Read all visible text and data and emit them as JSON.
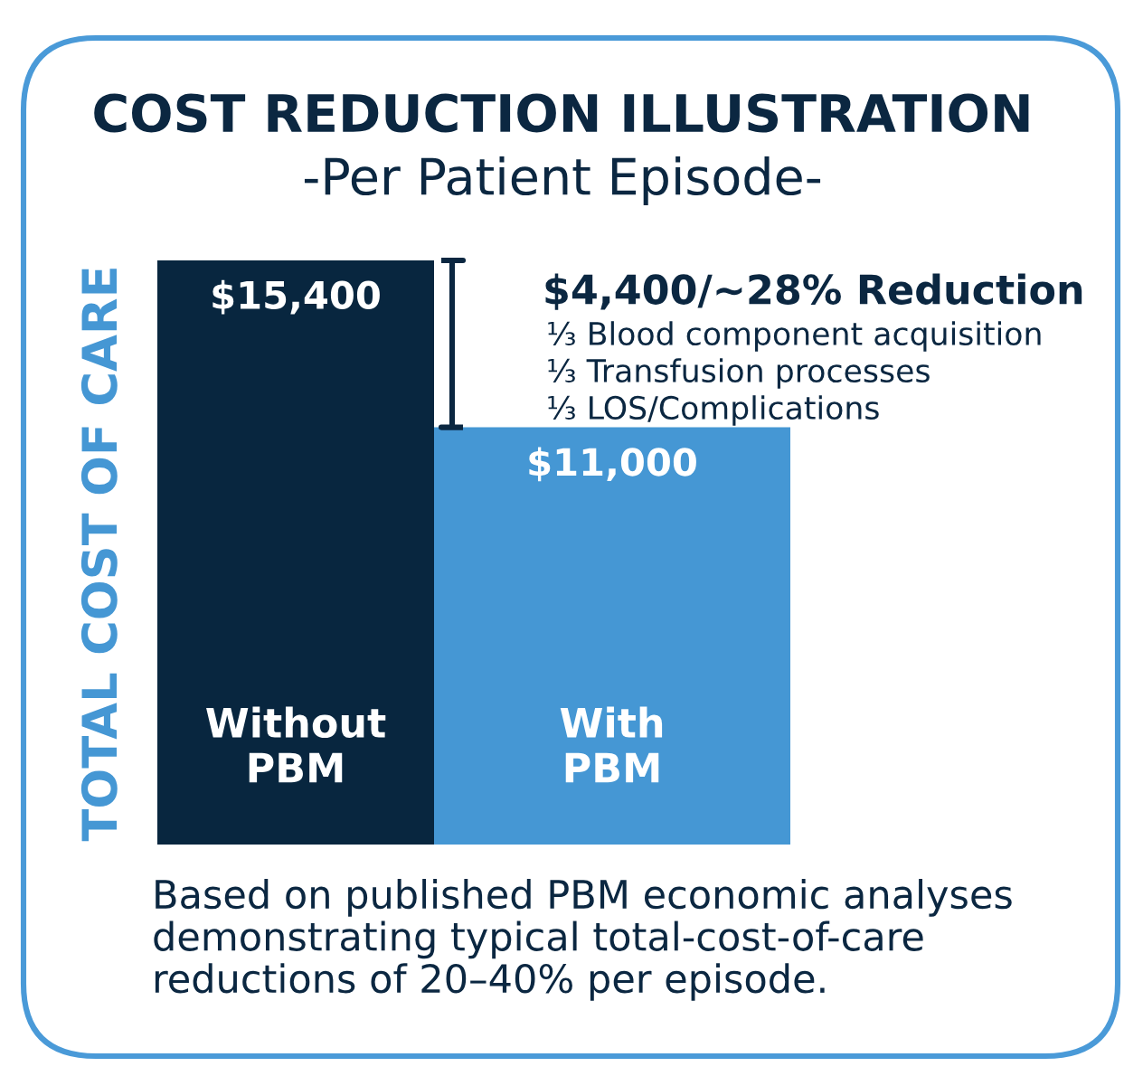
{
  "chart_data": {
    "type": "bar",
    "title": "COST REDUCTION ILLUSTRATION",
    "subtitle": "-Per Patient Episode-",
    "ylabel": "TOTAL COST OF CARE",
    "categories": [
      "Without PBM",
      "With PBM"
    ],
    "values": [
      15400,
      11000
    ],
    "colors": [
      "#08263f",
      "#4597d4"
    ],
    "value_labels": [
      "$15,400",
      "$11,000"
    ],
    "tick_labels": "x",
    "annotations": [
      "$4,400/~28% Reduction",
      "⅓ Blood component acquisition",
      "⅓ Transfusion processes",
      "⅓ LOS/Complications",
      "Based on published PBM economic analyses demonstrating typical total-cost-of-care reductions of 20–40% per episode."
    ]
  }
}
